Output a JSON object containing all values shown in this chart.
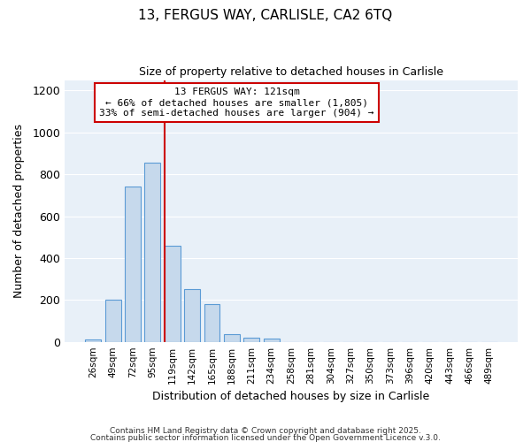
{
  "title_line1": "13, FERGUS WAY, CARLISLE, CA2 6TQ",
  "title_line2": "Size of property relative to detached houses in Carlisle",
  "xlabel": "Distribution of detached houses by size in Carlisle",
  "ylabel": "Number of detached properties",
  "bar_color": "#c6d9ec",
  "bar_edge_color": "#5b9bd5",
  "plot_bg_color": "#e8f0f8",
  "fig_bg_color": "#ffffff",
  "grid_color": "#ffffff",
  "annotation_box_color": "#cc0000",
  "vline_color": "#cc0000",
  "categories": [
    "26sqm",
    "49sqm",
    "72sqm",
    "95sqm",
    "119sqm",
    "142sqm",
    "165sqm",
    "188sqm",
    "211sqm",
    "234sqm",
    "258sqm",
    "281sqm",
    "304sqm",
    "327sqm",
    "350sqm",
    "373sqm",
    "396sqm",
    "420sqm",
    "443sqm",
    "466sqm",
    "489sqm"
  ],
  "values": [
    10,
    200,
    740,
    855,
    460,
    250,
    180,
    35,
    20,
    15,
    0,
    0,
    0,
    0,
    0,
    0,
    0,
    0,
    0,
    0,
    0
  ],
  "property_label": "13 FERGUS WAY: 121sqm",
  "annotation_line2": "← 66% of detached houses are smaller (1,805)",
  "annotation_line3": "33% of semi-detached houses are larger (904) →",
  "vline_x": 4.0,
  "ylim": [
    0,
    1250
  ],
  "yticks": [
    0,
    200,
    400,
    600,
    800,
    1000,
    1200
  ],
  "footer_line1": "Contains HM Land Registry data © Crown copyright and database right 2025.",
  "footer_line2": "Contains public sector information licensed under the Open Government Licence v.3.0.",
  "figsize": [
    6.0,
    5.0
  ],
  "dpi": 100
}
